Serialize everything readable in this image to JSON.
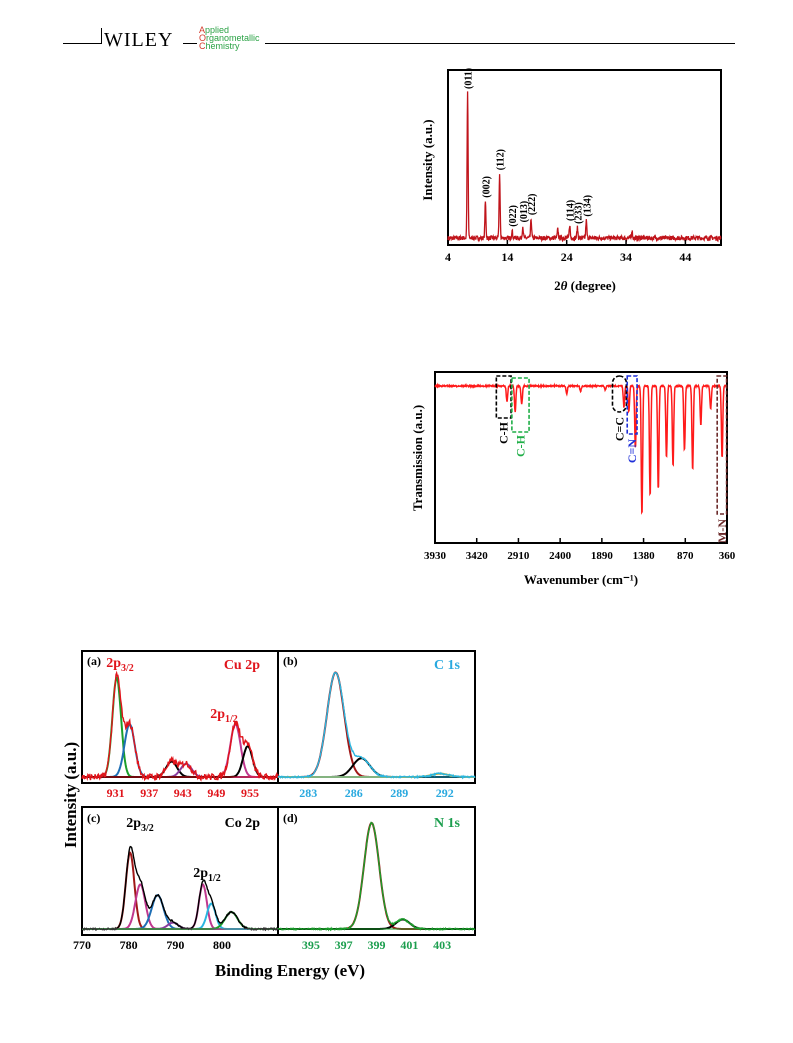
{
  "header": {
    "publisher": "WILEY",
    "journal_lines": [
      {
        "cap": "A",
        "rest": "pplied"
      },
      {
        "cap": "O",
        "rest": "rganometallic"
      },
      {
        "cap": "C",
        "rest": "hemistry"
      }
    ]
  },
  "colors": {
    "xrd_line": "#c0141b",
    "ftir_line": "#ff1a1a",
    "fit_darkred": "#a01818",
    "fit_green": "#1a9e2a",
    "fit_blue": "#1e6fb5",
    "fit_magenta": "#c0388f",
    "fit_purple": "#8a3c9e",
    "fit_cyan": "#29b6e0",
    "fit_yellow": "#e0b020",
    "box_black": "#000000",
    "box_green": "#1fae47",
    "box_blue": "#1e2fd8",
    "box_maroon": "#6b2a2a",
    "label_red": "#e0141b",
    "label_cyan": "#29a9df",
    "label_green": "#1c9e4e"
  },
  "chart_data": [
    {
      "id": "xrd",
      "type": "line",
      "xlabel_prefix": "2",
      "xlabel_symbol": "θ",
      "xlabel_suffix": " (degree)",
      "ylabel": "Intensity (a.u.)",
      "xlim": [
        4,
        50
      ],
      "xticks": [
        4,
        14,
        24,
        34,
        44
      ],
      "peaks": [
        {
          "x": 7.3,
          "h": 1.0,
          "label": "(011)"
        },
        {
          "x": 10.3,
          "h": 0.25,
          "label": "(002)"
        },
        {
          "x": 12.7,
          "h": 0.44,
          "label": "(112)"
        },
        {
          "x": 14.8,
          "h": 0.05,
          "label": "(022)"
        },
        {
          "x": 16.6,
          "h": 0.08,
          "label": "(013)"
        },
        {
          "x": 18.0,
          "h": 0.13,
          "label": "(222)"
        },
        {
          "x": 22.5,
          "h": 0.06,
          "label": ""
        },
        {
          "x": 24.5,
          "h": 0.09,
          "label": "(114)"
        },
        {
          "x": 25.8,
          "h": 0.07,
          "label": "(233)"
        },
        {
          "x": 27.3,
          "h": 0.12,
          "label": "(134)"
        },
        {
          "x": 35.0,
          "h": 0.05,
          "label": ""
        }
      ]
    },
    {
      "id": "ftir",
      "type": "line",
      "xlabel": "Wavenumber (cm⁻¹)",
      "ylabel": "Transmission (a.u.)",
      "xlim": [
        3930,
        360
      ],
      "xticks": [
        3930,
        3420,
        2910,
        2400,
        1890,
        1380,
        870,
        360
      ],
      "dips": [
        {
          "x": 3050,
          "d": 0.12
        },
        {
          "x": 2950,
          "d": 0.2
        },
        {
          "x": 2870,
          "d": 0.14
        },
        {
          "x": 2320,
          "d": 0.06
        },
        {
          "x": 2150,
          "d": 0.04
        },
        {
          "x": 1850,
          "d": 0.03
        },
        {
          "x": 1620,
          "d": 0.16
        },
        {
          "x": 1560,
          "d": 0.2
        },
        {
          "x": 1480,
          "d": 0.48
        },
        {
          "x": 1400,
          "d": 1.0
        },
        {
          "x": 1300,
          "d": 0.85
        },
        {
          "x": 1200,
          "d": 0.8
        },
        {
          "x": 1100,
          "d": 0.55
        },
        {
          "x": 1020,
          "d": 0.62
        },
        {
          "x": 880,
          "d": 0.5
        },
        {
          "x": 780,
          "d": 0.65
        },
        {
          "x": 680,
          "d": 0.3
        },
        {
          "x": 560,
          "d": 0.18
        },
        {
          "x": 420,
          "d": 0.55
        }
      ],
      "annotations": [
        {
          "label": "C-H",
          "x1": 3180,
          "x2": 3000,
          "color_key": "box_black"
        },
        {
          "label": "C-H",
          "x1": 2990,
          "x2": 2780,
          "color_key": "box_green"
        },
        {
          "label": "C=C",
          "x1": 1760,
          "x2": 1590,
          "color_key": "box_black"
        },
        {
          "label": "C=N",
          "x1": 1580,
          "x2": 1460,
          "color_key": "box_blue"
        },
        {
          "label": "M-N",
          "x1": 480,
          "x2": 365,
          "color_key": "box_maroon"
        }
      ]
    },
    {
      "id": "xps",
      "type": "line",
      "ylabel": "Intensity (a.u.)",
      "xlabel": "Binding Energy (eV)",
      "panels": [
        {
          "tag": "(a)",
          "element": "Cu 2p",
          "xlim": [
            925,
            960
          ],
          "xticks": [
            931,
            937,
            943,
            949,
            955
          ],
          "peak_labels": [
            {
              "main": "2p",
              "sub": "3/2",
              "x": 932
            },
            {
              "main": "2p",
              "sub": "1/2",
              "x": 952
            }
          ]
        },
        {
          "tag": "(b)",
          "element": "C 1s",
          "xlim": [
            281,
            294
          ],
          "xticks": [
            283,
            286,
            289,
            292
          ],
          "peak_labels": []
        },
        {
          "tag": "(c)",
          "element": "Co 2p",
          "xlim": [
            770,
            812
          ],
          "xticks": [
            770,
            780,
            790,
            800
          ],
          "peak_labels": [
            {
              "main": "2p",
              "sub": "3/2",
              "x": 784
            },
            {
              "main": "2p",
              "sub": "1/2",
              "x": 796
            }
          ]
        },
        {
          "tag": "(d)",
          "element": "N 1s",
          "xlim": [
            393,
            405
          ],
          "xticks": [
            395,
            397,
            399,
            401,
            403
          ],
          "peak_labels": []
        }
      ]
    }
  ]
}
